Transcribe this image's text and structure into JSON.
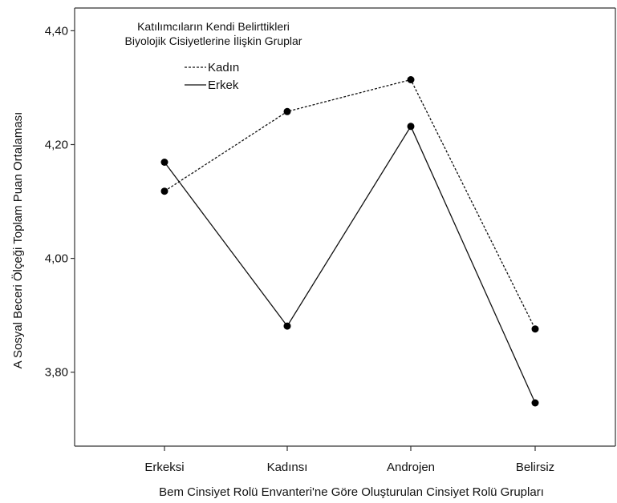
{
  "chart_data": {
    "type": "line",
    "ylabel": "A Sosyal Beceri Ölçeği Toplam Puan Ortalaması",
    "xlabel": "Bem Cinsiyet Rolü Envanteri'ne Göre Oluşturulan Cinsiyet Rolü Grupları",
    "categories": [
      "Erkeksi",
      "Kadınsı",
      "Androjen",
      "Belirsiz"
    ],
    "ylim": [
      3.67,
      4.44
    ],
    "yticks": [
      3.8,
      4.0,
      4.2,
      4.4
    ],
    "ytick_labels": [
      "3,80",
      "4,00",
      "4,20",
      "4,40"
    ],
    "grid": false,
    "legend": {
      "title_line1": "Katılımcıların Kendi Belirttikleri",
      "title_line2": "Biyolojik Cisiyetlerine İlişkin Gruplar",
      "placement": "top-left"
    },
    "series": [
      {
        "name": "Kadın",
        "style": "dashed",
        "values": [
          4.118,
          4.258,
          4.314,
          3.876
        ]
      },
      {
        "name": "Erkek",
        "style": "solid",
        "values": [
          4.169,
          3.881,
          4.232,
          3.746
        ]
      }
    ]
  },
  "colors": {
    "line": "#111111",
    "marker": "#000000",
    "axis": "#333333"
  }
}
